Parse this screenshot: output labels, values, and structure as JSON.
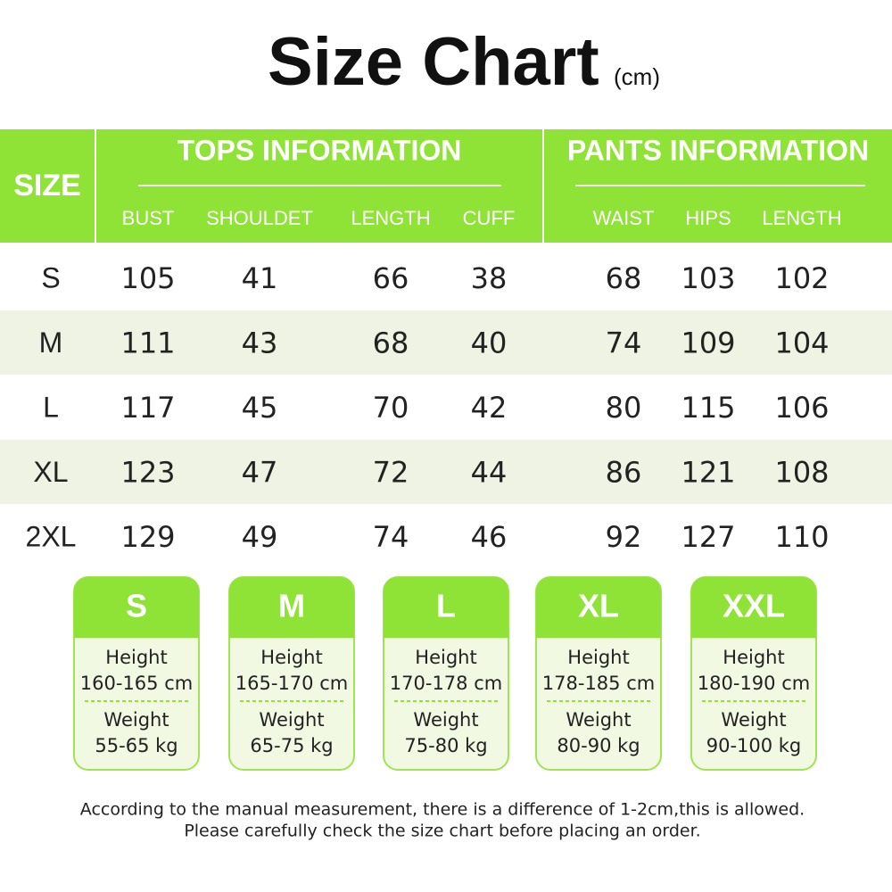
{
  "title": "Size Chart",
  "unit": "(cm)",
  "table": {
    "size_header": "SIZE",
    "groups": [
      {
        "title": "TOPS INFORMATION",
        "columns": [
          "BUST",
          "SHOULDET",
          "LENGTH",
          "CUFF"
        ]
      },
      {
        "title": "PANTS INFORMATION",
        "columns": [
          "WAIST",
          "HIPS",
          "LENGTH"
        ]
      }
    ],
    "rows": [
      [
        "S",
        105,
        41,
        66,
        38,
        68,
        103,
        102
      ],
      [
        "M",
        111,
        43,
        68,
        40,
        74,
        109,
        104
      ],
      [
        "L",
        117,
        45,
        70,
        42,
        80,
        115,
        106
      ],
      [
        "XL",
        123,
        47,
        72,
        44,
        86,
        121,
        108
      ],
      [
        "2XL",
        129,
        49,
        74,
        46,
        92,
        127,
        110
      ]
    ]
  },
  "cards": [
    {
      "size": "S",
      "height_label": "Height",
      "height": "160-165 cm",
      "weight_label": "Weight",
      "weight": "55-65 kg"
    },
    {
      "size": "M",
      "height_label": "Height",
      "height": "165-170 cm",
      "weight_label": "Weight",
      "weight": "65-75 kg"
    },
    {
      "size": "L",
      "height_label": "Height",
      "height": "170-178 cm",
      "weight_label": "Weight",
      "weight": "75-80 kg"
    },
    {
      "size": "XL",
      "height_label": "Height",
      "height": "178-185 cm",
      "weight_label": "Weight",
      "weight": "80-90 kg"
    },
    {
      "size": "XXL",
      "height_label": "Height",
      "height": "180-190 cm",
      "weight_label": "Weight",
      "weight": "90-100 kg"
    }
  ],
  "notes": [
    "According to the manual measurement, there is a difference of 1-2cm,this is allowed.",
    "Please carefully check the size chart before placing an order."
  ]
}
